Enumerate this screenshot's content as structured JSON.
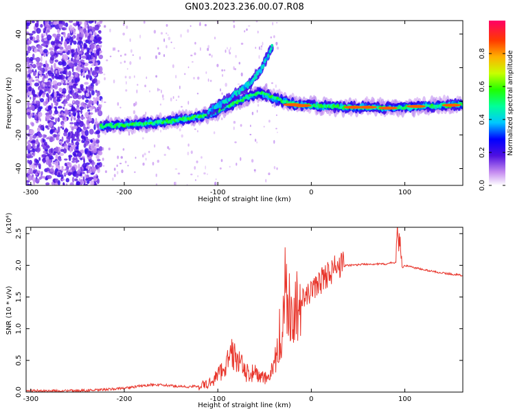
{
  "title": "GN03.2023.236.00.07.R08",
  "chart_data": [
    {
      "type": "heatmap",
      "xlabel": "Height of straight line (km)",
      "ylabel": "Frequency (Hz)",
      "xlim": [
        -305,
        162
      ],
      "ylim": [
        -50,
        48
      ],
      "xticks": [
        -300,
        -200,
        -100,
        0,
        100
      ],
      "yticks": [
        -40,
        -20,
        0,
        20,
        40
      ],
      "colorbar": {
        "label": "Normalized spectral amplitude",
        "ticks": [
          0.0,
          0.2,
          0.4,
          0.6,
          0.8
        ],
        "range": [
          0,
          1
        ]
      },
      "ridge_main": {
        "x": [
          -225,
          -200,
          -170,
          -140,
          -110,
          -90,
          -70,
          -55,
          -45,
          -30,
          -15,
          0,
          20,
          40,
          60,
          80,
          100,
          120,
          140,
          162
        ],
        "y": [
          -15,
          -14,
          -13,
          -11,
          -8,
          -3,
          2,
          5,
          3,
          0,
          -2,
          -2.5,
          -3,
          -3.5,
          -3.5,
          -4,
          -3.5,
          -3,
          -2.5,
          -2
        ]
      },
      "ridge_upper": {
        "x": [
          -110,
          -95,
          -80,
          -65,
          -52,
          -42
        ],
        "y": [
          -6,
          -1,
          5,
          11,
          20,
          33
        ]
      }
    },
    {
      "type": "line",
      "xlabel": "Height of straight line (km)",
      "ylabel": "SNR (10 * v/v)",
      "yunit": "(x10⁴)",
      "xlim": [
        -305,
        162
      ],
      "ylim": [
        0,
        2.6
      ],
      "xticks": [
        -300,
        -200,
        -100,
        0,
        100
      ],
      "yticks": [
        0.0,
        0.5,
        1.0,
        1.5,
        2.0,
        2.5
      ],
      "series": [
        {
          "color": "#e8342a",
          "x": [
            -305,
            -260,
            -230,
            -210,
            -190,
            -170,
            -150,
            -130,
            -110,
            -95,
            -85,
            -78,
            -70,
            -60,
            -50,
            -40,
            -32,
            -28,
            -25,
            -22,
            -18,
            -15,
            -10,
            -5,
            0,
            10,
            20,
            30,
            40,
            60,
            80,
            90,
            93,
            96,
            100,
            120,
            140,
            162
          ],
          "y": [
            0.02,
            0.02,
            0.03,
            0.05,
            0.08,
            0.12,
            0.1,
            0.08,
            0.12,
            0.35,
            0.6,
            0.5,
            0.3,
            0.3,
            0.2,
            0.35,
            0.8,
            1.5,
            1.2,
            1.1,
            1.3,
            1.25,
            1.45,
            1.5,
            1.6,
            1.75,
            1.9,
            1.98,
            2.0,
            2.02,
            2.02,
            2.05,
            2.6,
            1.95,
            2.0,
            1.93,
            1.88,
            1.84
          ]
        }
      ]
    }
  ]
}
